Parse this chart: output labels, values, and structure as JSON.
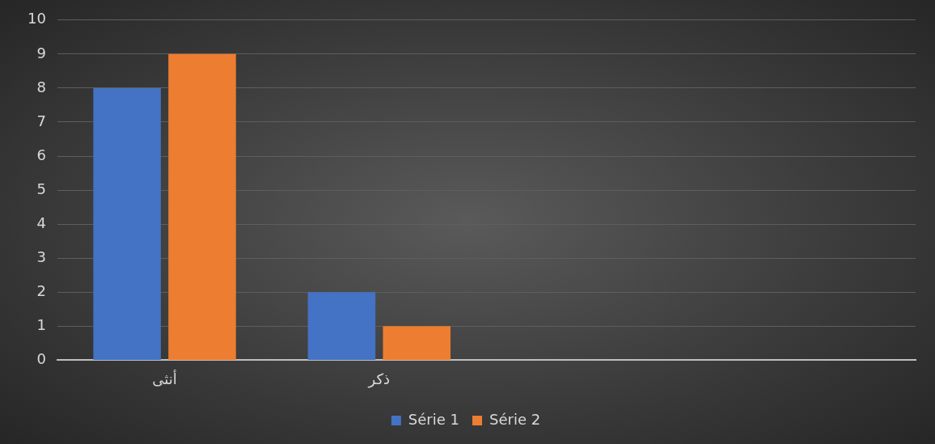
{
  "chart_data": {
    "type": "bar",
    "categories": [
      "أنثى",
      "ذكر",
      null,
      null
    ],
    "series": [
      {
        "name": "Série 1",
        "color": "#4472c4",
        "values": [
          8,
          2,
          null,
          null
        ]
      },
      {
        "name": "Série 2",
        "color": "#ed7d31",
        "values": [
          9,
          1,
          null,
          null
        ]
      }
    ],
    "ylim": [
      0,
      10
    ],
    "yticks": [
      0,
      1,
      2,
      3,
      4,
      5,
      6,
      7,
      8,
      9,
      10
    ],
    "grid": "y",
    "legend": "bottom"
  }
}
